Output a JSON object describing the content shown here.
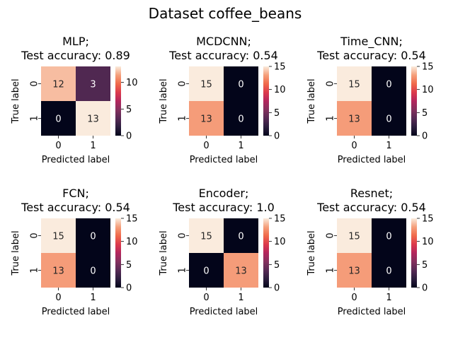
{
  "figure": {
    "suptitle": "Dataset coffee_beans"
  },
  "chart_data": [
    {
      "type": "heatmap",
      "title_line1": "MLP;",
      "title_line2": "Test accuracy: 0.89",
      "xlabel": "Predicted label",
      "ylabel": "True label",
      "x_ticklabels": [
        "0",
        "1"
      ],
      "y_ticklabels": [
        "0",
        "1"
      ],
      "matrix": [
        [
          12,
          3
        ],
        [
          0,
          13
        ]
      ],
      "colorbar": {
        "vmin": 0,
        "vmax": 13,
        "ticks": [
          0,
          5,
          10
        ]
      }
    },
    {
      "type": "heatmap",
      "title_line1": "MCDCNN;",
      "title_line2": "Test accuracy: 0.54",
      "xlabel": "Predicted label",
      "ylabel": "True label",
      "x_ticklabels": [
        "0",
        "1"
      ],
      "y_ticklabels": [
        "0",
        "1"
      ],
      "matrix": [
        [
          15,
          0
        ],
        [
          13,
          0
        ]
      ],
      "colorbar": {
        "vmin": 0,
        "vmax": 15,
        "ticks": [
          0,
          5,
          10,
          15
        ]
      }
    },
    {
      "type": "heatmap",
      "title_line1": "Time_CNN;",
      "title_line2": "Test accuracy: 0.54",
      "xlabel": "Predicted label",
      "ylabel": "True label",
      "x_ticklabels": [
        "0",
        "1"
      ],
      "y_ticklabels": [
        "0",
        "1"
      ],
      "matrix": [
        [
          15,
          0
        ],
        [
          13,
          0
        ]
      ],
      "colorbar": {
        "vmin": 0,
        "vmax": 15,
        "ticks": [
          0,
          5,
          10,
          15
        ]
      }
    },
    {
      "type": "heatmap",
      "title_line1": "FCN;",
      "title_line2": "Test accuracy: 0.54",
      "xlabel": "Predicted label",
      "ylabel": "True label",
      "x_ticklabels": [
        "0",
        "1"
      ],
      "y_ticklabels": [
        "0",
        "1"
      ],
      "matrix": [
        [
          15,
          0
        ],
        [
          13,
          0
        ]
      ],
      "colorbar": {
        "vmin": 0,
        "vmax": 15,
        "ticks": [
          0,
          5,
          10,
          15
        ]
      }
    },
    {
      "type": "heatmap",
      "title_line1": "Encoder;",
      "title_line2": "Test accuracy: 1.0",
      "xlabel": "Predicted label",
      "ylabel": "True label",
      "x_ticklabels": [
        "0",
        "1"
      ],
      "y_ticklabels": [
        "0",
        "1"
      ],
      "matrix": [
        [
          15,
          0
        ],
        [
          0,
          13
        ]
      ],
      "colorbar": {
        "vmin": 0,
        "vmax": 15,
        "ticks": [
          0,
          5,
          10,
          15
        ]
      }
    },
    {
      "type": "heatmap",
      "title_line1": "Resnet;",
      "title_line2": "Test accuracy: 0.54",
      "xlabel": "Predicted label",
      "ylabel": "True label",
      "x_ticklabels": [
        "0",
        "1"
      ],
      "y_ticklabels": [
        "0",
        "1"
      ],
      "matrix": [
        [
          15,
          0
        ],
        [
          13,
          0
        ]
      ],
      "colorbar": {
        "vmin": 0,
        "vmax": 15,
        "ticks": [
          0,
          5,
          10,
          15
        ]
      }
    }
  ]
}
